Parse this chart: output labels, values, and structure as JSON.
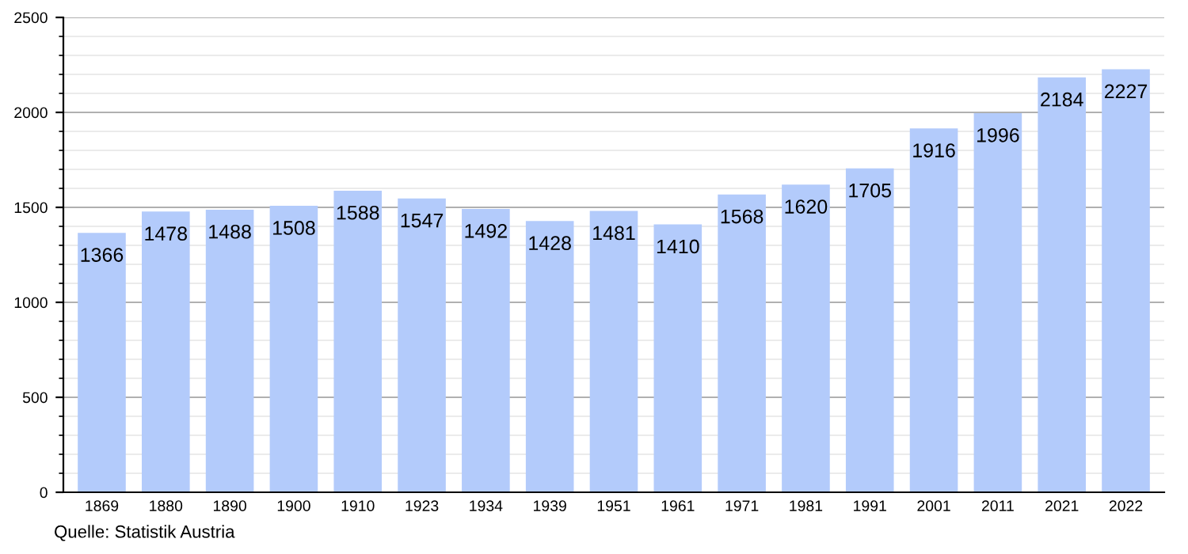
{
  "chart_data": {
    "type": "bar",
    "categories": [
      "1869",
      "1880",
      "1890",
      "1900",
      "1910",
      "1923",
      "1934",
      "1939",
      "1951",
      "1961",
      "1971",
      "1981",
      "1991",
      "2001",
      "2011",
      "2021",
      "2022"
    ],
    "values": [
      1366,
      1478,
      1488,
      1508,
      1588,
      1547,
      1492,
      1428,
      1481,
      1410,
      1568,
      1620,
      1705,
      1916,
      1996,
      2184,
      2227
    ],
    "color": "#b3cbfb",
    "ylim": [
      0,
      2500
    ],
    "yticks": [
      0,
      500,
      1000,
      1500,
      2000,
      2500
    ],
    "grid": "y",
    "data_labels": true,
    "annotations": [
      "Quelle: Statistik Austria"
    ]
  }
}
